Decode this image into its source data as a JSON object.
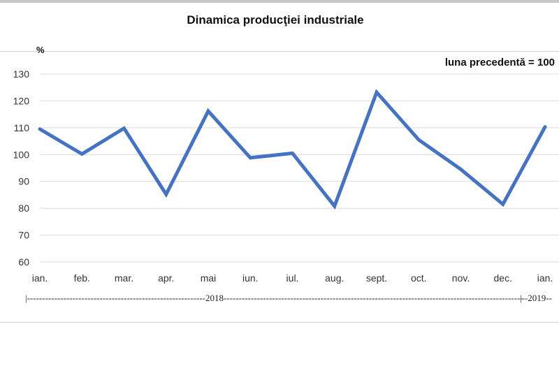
{
  "chart_data": {
    "type": "line",
    "title": "Dinamica producţiei industriale",
    "ylabel": "%",
    "note": "luna precedentă = 100",
    "categories": [
      "ian.",
      "feb.",
      "mar.",
      "apr.",
      "mai",
      "iun.",
      "iul.",
      "aug.",
      "sept.",
      "oct.",
      "nov.",
      "dec.",
      "ian."
    ],
    "values": [
      109.5,
      100.2,
      109.8,
      85.2,
      116.2,
      98.8,
      100.5,
      80.8,
      123.2,
      105.5,
      94.5,
      81.5,
      110.3
    ],
    "ylim": [
      60,
      130
    ],
    "yticks": [
      60,
      70,
      80,
      90,
      100,
      110,
      120,
      130
    ],
    "grid": true,
    "line_color": "#4472c4",
    "period_labels": [
      "2018",
      "2019"
    ]
  }
}
